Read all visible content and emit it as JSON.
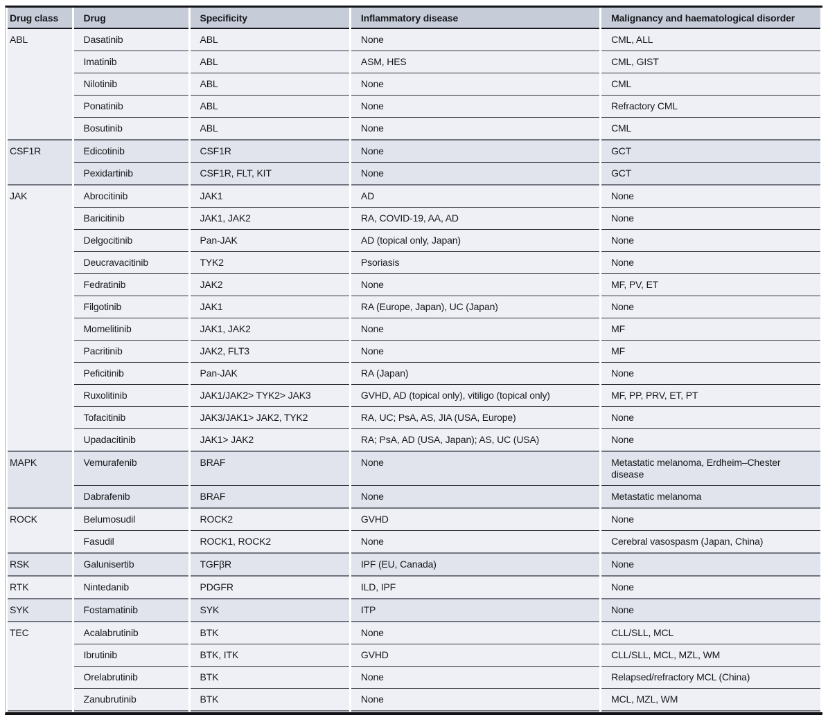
{
  "colors": {
    "page_bg": "#ffffff",
    "header_bg": "#c7ccd9",
    "group_light_bg": "#eef0f6",
    "group_dark_bg": "#e1e4ec",
    "heavy_rule": "#111316",
    "group_line": "#71757f",
    "row_line": "#2b2e34",
    "text": "#17181c"
  },
  "table": {
    "columns": [
      "Drug class",
      "Drug",
      "Specificity",
      "Inflammatory disease",
      "Malignancy and haematological disorder"
    ],
    "groups": [
      {
        "drug_class": "ABL",
        "rows": [
          {
            "drug": "Dasatinib",
            "specificity": "ABL",
            "inflammatory_disease": "None",
            "malignancy": "CML, ALL"
          },
          {
            "drug": "Imatinib",
            "specificity": "ABL",
            "inflammatory_disease": "ASM, HES",
            "malignancy": "CML, GIST"
          },
          {
            "drug": "Nilotinib",
            "specificity": "ABL",
            "inflammatory_disease": "None",
            "malignancy": "CML"
          },
          {
            "drug": "Ponatinib",
            "specificity": "ABL",
            "inflammatory_disease": "None",
            "malignancy": "Refractory CML"
          },
          {
            "drug": "Bosutinib",
            "specificity": "ABL",
            "inflammatory_disease": "None",
            "malignancy": "CML"
          }
        ]
      },
      {
        "drug_class": "CSF1R",
        "rows": [
          {
            "drug": "Edicotinib",
            "specificity": "CSF1R",
            "inflammatory_disease": "None",
            "malignancy": "GCT"
          },
          {
            "drug": "Pexidartinib",
            "specificity": "CSF1R, FLT, KIT",
            "inflammatory_disease": "None",
            "malignancy": "GCT"
          }
        ]
      },
      {
        "drug_class": "JAK",
        "rows": [
          {
            "drug": "Abrocitinib",
            "specificity": "JAK1",
            "inflammatory_disease": "AD",
            "malignancy": "None"
          },
          {
            "drug": "Baricitinib",
            "specificity": "JAK1, JAK2",
            "inflammatory_disease": "RA, COVID-19, AA, AD",
            "malignancy": "None"
          },
          {
            "drug": "Delgocitinib",
            "specificity": "Pan-JAK",
            "inflammatory_disease": "AD (topical only, Japan)",
            "malignancy": "None"
          },
          {
            "drug": "Deucravacitinib",
            "specificity": "TYK2",
            "inflammatory_disease": "Psoriasis",
            "malignancy": "None"
          },
          {
            "drug": "Fedratinib",
            "specificity": "JAK2",
            "inflammatory_disease": "None",
            "malignancy": "MF, PV, ET"
          },
          {
            "drug": "Filgotinib",
            "specificity": "JAK1",
            "inflammatory_disease": "RA (Europe, Japan), UC (Japan)",
            "malignancy": "None"
          },
          {
            "drug": "Momelitinib",
            "specificity": "JAK1, JAK2",
            "inflammatory_disease": "None",
            "malignancy": "MF"
          },
          {
            "drug": "Pacritinib",
            "specificity": "JAK2, FLT3",
            "inflammatory_disease": "None",
            "malignancy": "MF"
          },
          {
            "drug": "Peficitinib",
            "specificity": "Pan-JAK",
            "inflammatory_disease": "RA (Japan)",
            "malignancy": "None"
          },
          {
            "drug": "Ruxolitinib",
            "specificity": "JAK1/JAK2> TYK2> JAK3",
            "inflammatory_disease": "GVHD, AD (topical only), vitiligo (topical only)",
            "malignancy": "MF, PP, PRV, ET, PT"
          },
          {
            "drug": "Tofacitinib",
            "specificity": "JAK3/JAK1> JAK2, TYK2",
            "inflammatory_disease": "RA, UC; PsA, AS, JIA (USA, Europe)",
            "malignancy": "None"
          },
          {
            "drug": "Upadacitinib",
            "specificity": "JAK1> JAK2",
            "inflammatory_disease": "RA; PsA, AD (USA, Japan); AS, UC (USA)",
            "malignancy": "None"
          }
        ]
      },
      {
        "drug_class": "MAPK",
        "rows": [
          {
            "drug": "Vemurafenib",
            "specificity": "BRAF",
            "inflammatory_disease": "None",
            "malignancy": "Metastatic melanoma, Erdheim–Chester disease"
          },
          {
            "drug": "Dabrafenib",
            "specificity": "BRAF",
            "inflammatory_disease": "None",
            "malignancy": "Metastatic melanoma"
          }
        ]
      },
      {
        "drug_class": "ROCK",
        "rows": [
          {
            "drug": "Belumosudil",
            "specificity": "ROCK2",
            "inflammatory_disease": "GVHD",
            "malignancy": "None"
          },
          {
            "drug": "Fasudil",
            "specificity": "ROCK1, ROCK2",
            "inflammatory_disease": "None",
            "malignancy": "Cerebral vasospasm (Japan, China)"
          }
        ]
      },
      {
        "drug_class": "RSK",
        "rows": [
          {
            "drug": "Galunisertib",
            "specificity": "TGFβR",
            "inflammatory_disease": "IPF (EU, Canada)",
            "malignancy": "None"
          }
        ]
      },
      {
        "drug_class": "RTK",
        "rows": [
          {
            "drug": "Nintedanib",
            "specificity": "PDGFR",
            "inflammatory_disease": "ILD, IPF",
            "malignancy": "None"
          }
        ]
      },
      {
        "drug_class": "SYK",
        "rows": [
          {
            "drug": "Fostamatinib",
            "specificity": "SYK",
            "inflammatory_disease": "ITP",
            "malignancy": "None"
          }
        ]
      },
      {
        "drug_class": "TEC",
        "rows": [
          {
            "drug": "Acalabrutinib",
            "specificity": "BTK",
            "inflammatory_disease": "None",
            "malignancy": "CLL/SLL, MCL"
          },
          {
            "drug": "Ibrutinib",
            "specificity": "BTK, ITK",
            "inflammatory_disease": "GVHD",
            "malignancy": "CLL/SLL, MCL, MZL, WM"
          },
          {
            "drug": "Orelabrutinib",
            "specificity": "BTK",
            "inflammatory_disease": "None",
            "malignancy": "Relapsed/refractory MCL (China)"
          },
          {
            "drug": "Zanubrutinib",
            "specificity": "BTK",
            "inflammatory_disease": "None",
            "malignancy": "MCL, MZL, WM"
          }
        ]
      }
    ]
  }
}
